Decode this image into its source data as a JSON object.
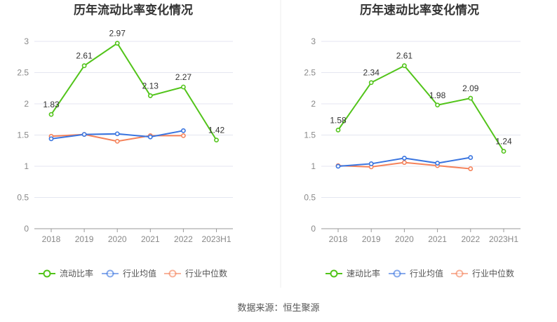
{
  "source": "数据来源：恒生聚源",
  "chart_data": [
    {
      "type": "line",
      "title": "历年流动比率变化情况",
      "categories": [
        "2018",
        "2019",
        "2020",
        "2021",
        "2022",
        "2023H1"
      ],
      "ylim": [
        0,
        3
      ],
      "yticks": [
        "0",
        "0.5",
        "1",
        "1.5",
        "2",
        "2.5",
        "3"
      ],
      "legend_position": "bottom",
      "series": [
        {
          "name": "流动比率",
          "color": "#52c41a",
          "values": [
            1.83,
            2.61,
            2.97,
            2.13,
            2.27,
            1.42
          ],
          "labels": [
            "1.83",
            "2.61",
            "2.97",
            "2.13",
            "2.27",
            "1.42"
          ]
        },
        {
          "name": "行业均值",
          "color": "#3a75e0",
          "values": [
            1.44,
            1.51,
            1.52,
            1.47,
            1.57,
            null
          ]
        },
        {
          "name": "行业中位数",
          "color": "#f5825a",
          "values": [
            1.48,
            1.51,
            1.4,
            1.49,
            1.49,
            null
          ]
        }
      ]
    },
    {
      "type": "line",
      "title": "历年速动比率变化情况",
      "categories": [
        "2018",
        "2019",
        "2020",
        "2021",
        "2022",
        "2023H1"
      ],
      "ylim": [
        0,
        3
      ],
      "yticks": [
        "0",
        "0.5",
        "1",
        "1.5",
        "2",
        "2.5",
        "3"
      ],
      "legend_position": "bottom",
      "series": [
        {
          "name": "速动比率",
          "color": "#52c41a",
          "values": [
            1.58,
            2.34,
            2.61,
            1.98,
            2.09,
            1.24
          ],
          "labels": [
            "1.58",
            "2.34",
            "2.61",
            "1.98",
            "2.09",
            "1.24"
          ]
        },
        {
          "name": "行业均值",
          "color": "#3a75e0",
          "values": [
            1.0,
            1.04,
            1.13,
            1.05,
            1.14,
            null
          ]
        },
        {
          "name": "行业中位数",
          "color": "#f5825a",
          "values": [
            1.01,
            0.99,
            1.06,
            1.01,
            0.96,
            null
          ]
        }
      ]
    }
  ]
}
